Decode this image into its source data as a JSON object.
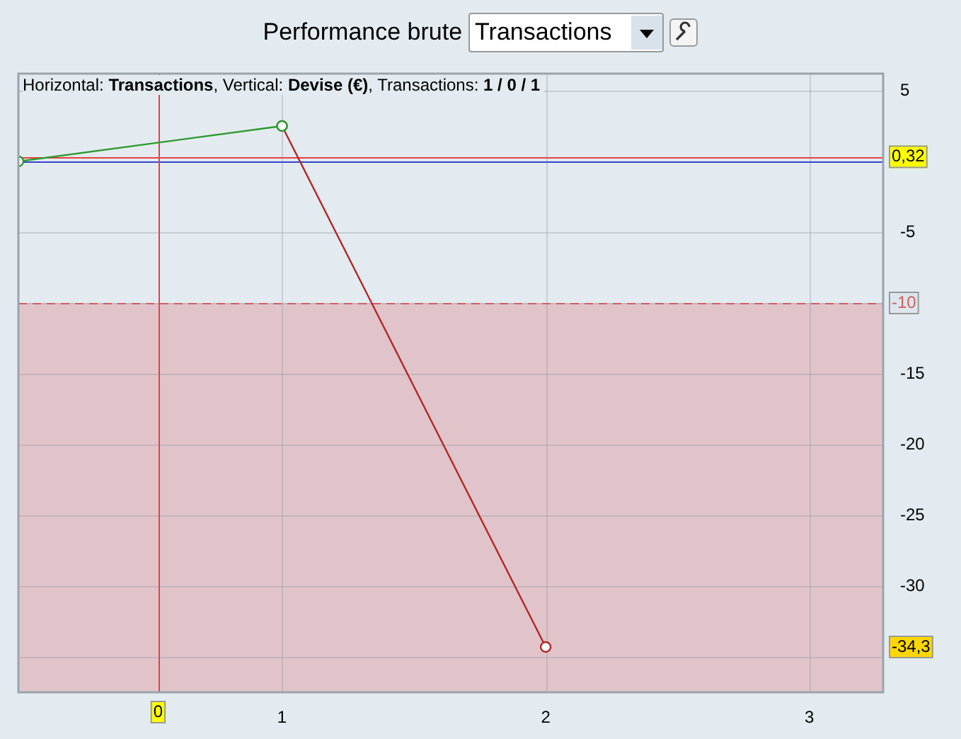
{
  "chart_data": {
    "type": "line",
    "title": "Performance brute",
    "subtitle": "Horizontal: Transactions, Vertical: Devise (€), Transactions: 1 / 0 / 1",
    "annotations": [
      "Transactions",
      "0",
      "-34,3"
    ],
    "series": [
      {
        "color": "#2e9a2e",
        "x": [
          0,
          1
        ],
        "values": [
          0,
          2.5
        ]
      },
      {
        "color": "#b02828",
        "x": [
          1,
          2
        ],
        "values": [
          2.5,
          -34.3
        ]
      }
    ],
    "xlim": [
      0,
      3.28
    ],
    "xticks": [
      1,
      2,
      3
    ],
    "ylim": [
      -37.5,
      6.2
    ],
    "yticks": [
      5,
      {
        "value": 0,
        "label": null
      },
      -5,
      {
        "value": -10,
        "label": null
      },
      -15,
      -20,
      -25,
      -30,
      {
        "value": -35,
        "label": null
      }
    ],
    "ref_lines": [
      {
        "axis": "y",
        "value": 0.32,
        "label": "0,32",
        "color": "#e84040"
      },
      {
        "axis": "y",
        "value": 0,
        "color": "#3344cc"
      },
      {
        "axis": "y",
        "value": -10,
        "label": "-10",
        "color": "#d06060",
        "line_style": "dashed"
      },
      {
        "axis": "x",
        "value": 0.53,
        "color": "#e84040"
      }
    ],
    "bands": [
      {
        "axis": "y",
        "from": -37.5,
        "to": -10,
        "color": "#e0c4c9"
      }
    ],
    "grid": true,
    "legend": false,
    "marker": "circle",
    "line_style": "solid"
  }
}
